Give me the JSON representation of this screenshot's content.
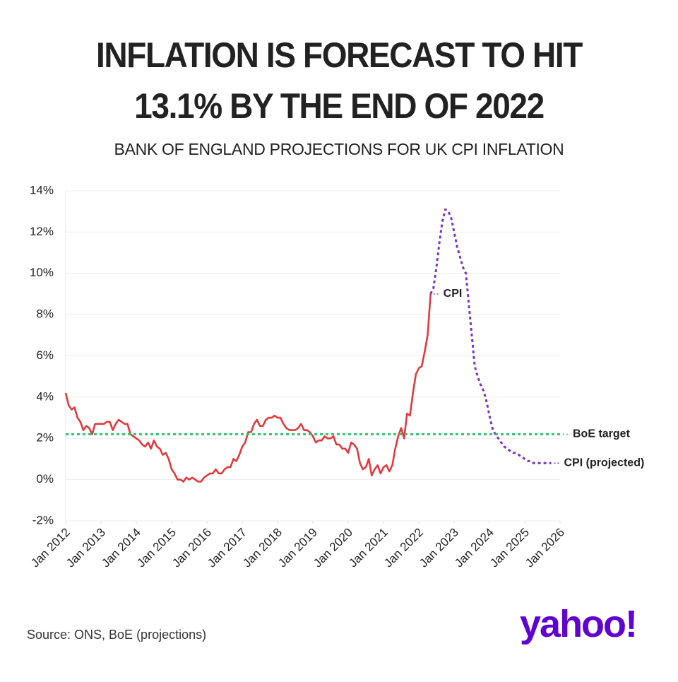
{
  "chart_data": {
    "type": "line",
    "title": "INFLATION IS FORECAST TO HIT 13.1% BY THE END OF 2022",
    "subtitle": "BANK OF ENGLAND PROJECTIONS FOR UK CPI INFLATION",
    "source": "Source: ONS, BoE (projections)",
    "brand": "yahoo!",
    "ylim": [
      -2,
      14
    ],
    "yticks": [
      {
        "value": -2,
        "label": "-2%"
      },
      {
        "value": 0,
        "label": "0%"
      },
      {
        "value": 2,
        "label": "2%"
      },
      {
        "value": 4,
        "label": "4%"
      },
      {
        "value": 6,
        "label": "6%"
      },
      {
        "value": 8,
        "label": "8%"
      },
      {
        "value": 10,
        "label": "10%"
      },
      {
        "value": 12,
        "label": "12%"
      },
      {
        "value": 14,
        "label": "14%"
      }
    ],
    "xlim": [
      "2012-01",
      "2026-01"
    ],
    "xticks": [
      {
        "value": "2012-01",
        "label": "Jan 2012"
      },
      {
        "value": "2013-01",
        "label": "Jan 2013"
      },
      {
        "value": "2014-01",
        "label": "Jan 2014"
      },
      {
        "value": "2015-01",
        "label": "Jan 2015"
      },
      {
        "value": "2016-01",
        "label": "Jan 2016"
      },
      {
        "value": "2017-01",
        "label": "Jan 2017"
      },
      {
        "value": "2018-01",
        "label": "Jan 2018"
      },
      {
        "value": "2019-01",
        "label": "Jan 2019"
      },
      {
        "value": "2020-01",
        "label": "Jan 2020"
      },
      {
        "value": "2021-01",
        "label": "Jan 2021"
      },
      {
        "value": "2022-01",
        "label": "Jan 2022"
      },
      {
        "value": "2023-01",
        "label": "Jan 2023"
      },
      {
        "value": "2024-01",
        "label": "Jan 2024"
      },
      {
        "value": "2025-01",
        "label": "Jan 2025"
      },
      {
        "value": "2026-01",
        "label": "Jan 2026"
      }
    ],
    "grid": true,
    "series": [
      {
        "name": "CPI",
        "color": "#e03a3e",
        "dash": false,
        "x": [
          "2012-01",
          "2012-02",
          "2012-03",
          "2012-04",
          "2012-05",
          "2012-06",
          "2012-07",
          "2012-08",
          "2012-09",
          "2012-10",
          "2012-11",
          "2012-12",
          "2013-01",
          "2013-02",
          "2013-03",
          "2013-04",
          "2013-05",
          "2013-06",
          "2013-07",
          "2013-08",
          "2013-09",
          "2013-10",
          "2013-11",
          "2013-12",
          "2014-01",
          "2014-02",
          "2014-03",
          "2014-04",
          "2014-05",
          "2014-06",
          "2014-07",
          "2014-08",
          "2014-09",
          "2014-10",
          "2014-11",
          "2014-12",
          "2015-01",
          "2015-02",
          "2015-03",
          "2015-04",
          "2015-05",
          "2015-06",
          "2015-07",
          "2015-08",
          "2015-09",
          "2015-10",
          "2015-11",
          "2015-12",
          "2016-01",
          "2016-02",
          "2016-03",
          "2016-04",
          "2016-05",
          "2016-06",
          "2016-07",
          "2016-08",
          "2016-09",
          "2016-10",
          "2016-11",
          "2016-12",
          "2017-01",
          "2017-02",
          "2017-03",
          "2017-04",
          "2017-05",
          "2017-06",
          "2017-07",
          "2017-08",
          "2017-09",
          "2017-10",
          "2017-11",
          "2017-12",
          "2018-01",
          "2018-02",
          "2018-03",
          "2018-04",
          "2018-05",
          "2018-06",
          "2018-07",
          "2018-08",
          "2018-09",
          "2018-10",
          "2018-11",
          "2018-12",
          "2019-01",
          "2019-02",
          "2019-03",
          "2019-04",
          "2019-05",
          "2019-06",
          "2019-07",
          "2019-08",
          "2019-09",
          "2019-10",
          "2019-11",
          "2019-12",
          "2020-01",
          "2020-02",
          "2020-03",
          "2020-04",
          "2020-05",
          "2020-06",
          "2020-07",
          "2020-08",
          "2020-09",
          "2020-10",
          "2020-11",
          "2020-12",
          "2021-01",
          "2021-02",
          "2021-03",
          "2021-04",
          "2021-05",
          "2021-06",
          "2021-07",
          "2021-08",
          "2021-09",
          "2021-10",
          "2021-11",
          "2021-12",
          "2022-01",
          "2022-02",
          "2022-03",
          "2022-04",
          "2022-05"
        ],
        "values": [
          4.2,
          3.6,
          3.4,
          3.5,
          3.0,
          2.8,
          2.4,
          2.6,
          2.5,
          2.2,
          2.7,
          2.7,
          2.7,
          2.7,
          2.8,
          2.8,
          2.4,
          2.7,
          2.9,
          2.8,
          2.7,
          2.7,
          2.2,
          2.1,
          2.0,
          1.9,
          1.7,
          1.6,
          1.8,
          1.5,
          1.9,
          1.6,
          1.5,
          1.2,
          1.3,
          1.0,
          0.5,
          0.3,
          0.0,
          0.0,
          -0.1,
          0.1,
          0.0,
          0.1,
          0.0,
          -0.1,
          -0.1,
          0.1,
          0.2,
          0.3,
          0.3,
          0.5,
          0.3,
          0.3,
          0.5,
          0.6,
          0.6,
          1.0,
          0.9,
          1.2,
          1.6,
          1.8,
          2.3,
          2.3,
          2.7,
          2.9,
          2.6,
          2.6,
          2.9,
          3.0,
          3.0,
          3.1,
          3.0,
          3.0,
          2.7,
          2.5,
          2.4,
          2.4,
          2.4,
          2.5,
          2.7,
          2.4,
          2.4,
          2.3,
          2.1,
          1.8,
          1.9,
          1.9,
          2.1,
          2.0,
          2.0,
          2.1,
          1.7,
          1.7,
          1.5,
          1.5,
          1.3,
          1.8,
          1.7,
          1.5,
          0.8,
          0.5,
          0.6,
          1.0,
          0.2,
          0.5,
          0.7,
          0.3,
          0.6,
          0.7,
          0.4,
          0.7,
          1.5,
          2.1,
          2.5,
          2.0,
          3.2,
          3.1,
          4.2,
          5.1,
          5.4,
          5.5,
          6.2,
          7.0,
          9.0
        ]
      },
      {
        "name": "CPI (projected)",
        "color": "#7a33c2",
        "dash": true,
        "x": [
          "2022-05",
          "2022-06",
          "2022-07",
          "2022-08",
          "2022-09",
          "2022-10",
          "2022-11",
          "2022-12",
          "2023-01",
          "2023-02",
          "2023-03",
          "2023-04",
          "2023-05",
          "2023-06",
          "2023-07",
          "2023-08",
          "2023-09",
          "2023-10",
          "2023-11",
          "2023-12",
          "2024-01",
          "2024-02",
          "2024-03",
          "2024-04",
          "2024-05",
          "2024-06",
          "2024-07",
          "2024-08",
          "2024-09",
          "2024-10",
          "2024-11",
          "2024-12",
          "2025-01",
          "2025-02",
          "2025-03",
          "2025-04",
          "2025-05",
          "2025-06",
          "2025-07",
          "2025-08",
          "2025-09",
          "2025-10"
        ],
        "values": [
          9.0,
          9.3,
          10.3,
          11.5,
          12.5,
          13.1,
          13.0,
          12.7,
          12.0,
          11.3,
          10.8,
          10.3,
          10.0,
          8.5,
          7.0,
          5.5,
          5.0,
          4.6,
          4.3,
          3.8,
          3.1,
          2.5,
          2.2,
          2.0,
          1.8,
          1.6,
          1.5,
          1.4,
          1.3,
          1.3,
          1.2,
          1.1,
          1.0,
          0.9,
          0.9,
          0.8,
          0.8,
          0.8,
          0.8,
          0.8,
          0.8,
          0.8
        ]
      },
      {
        "name": "BoE target",
        "color": "#2cc46c",
        "dash": true,
        "x": [
          "2012-01",
          "2026-01"
        ],
        "values": [
          2.2,
          2.2
        ]
      }
    ]
  }
}
